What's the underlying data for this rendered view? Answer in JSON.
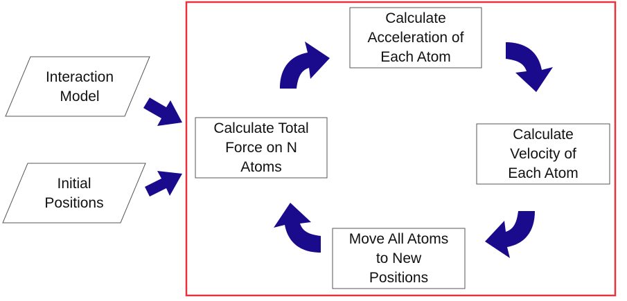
{
  "inputs": {
    "interaction_model": "Interaction\nModel",
    "initial_positions": "Initial\nPositions"
  },
  "steps": {
    "total_force": "Calculate Total\nForce on N\nAtoms",
    "acceleration": "Calculate\nAcceleration of\nEach Atom",
    "velocity": "Calculate\nVelocity of\nEach Atom",
    "move": "Move All Atoms\nto New\nPositions"
  },
  "colors": {
    "loop_border": "#e8333f",
    "arrow_fill": "#1a0a8c",
    "box_border": "#555555"
  }
}
